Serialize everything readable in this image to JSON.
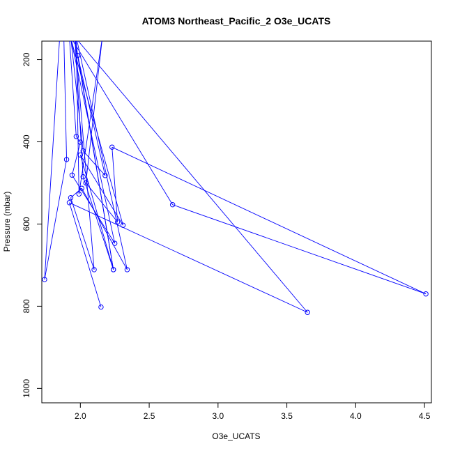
{
  "chart_data": {
    "type": "scatter",
    "title": "ATOM3 Northeast_Pacific_2 O3e_UCATS",
    "xlabel": "O3e_UCATS",
    "ylabel": "Pressure (mbar)",
    "xlim": [
      1.72,
      4.55
    ],
    "ylim": [
      1035,
      155
    ],
    "y_reversed": true,
    "grid": false,
    "legend": "none",
    "xticks": [
      2.0,
      2.5,
      3.0,
      3.5,
      4.0,
      4.5
    ],
    "xtick_labels": [
      "2.0",
      "2.5",
      "3.0",
      "3.5",
      "4.0",
      "4.5"
    ],
    "yticks": [
      200,
      400,
      600,
      800,
      1000
    ],
    "ytick_labels": [
      "200",
      "400",
      "600",
      "800",
      "1000"
    ],
    "series": [
      {
        "color": "#0000ff",
        "marker": "open-circle",
        "connected": true,
        "x": [
          1.85,
          1.74,
          1.9,
          1.88,
          1.92,
          1.97,
          2.0,
          1.94,
          2.25,
          1.93,
          2.31,
          2.0,
          2.24,
          2.02,
          1.96,
          2.1,
          1.93,
          2.01,
          2.34,
          1.97,
          1.99,
          2.16,
          2.04,
          2.27,
          2.23,
          4.51,
          2.67,
          1.93,
          2.02,
          2.18,
          1.98,
          2.24,
          1.96,
          3.65,
          1.92,
          2.15
        ],
        "y": [
          145,
          735,
          443,
          145,
          145,
          387,
          401,
          481,
          647,
          148,
          603,
          432,
          711,
          485,
          145,
          711,
          536,
          513,
          711,
          145,
          527,
          145,
          500,
          595,
          413,
          770,
          553,
          145,
          422,
          482,
          190,
          711,
          145,
          815,
          548,
          802
        ]
      }
    ]
  }
}
